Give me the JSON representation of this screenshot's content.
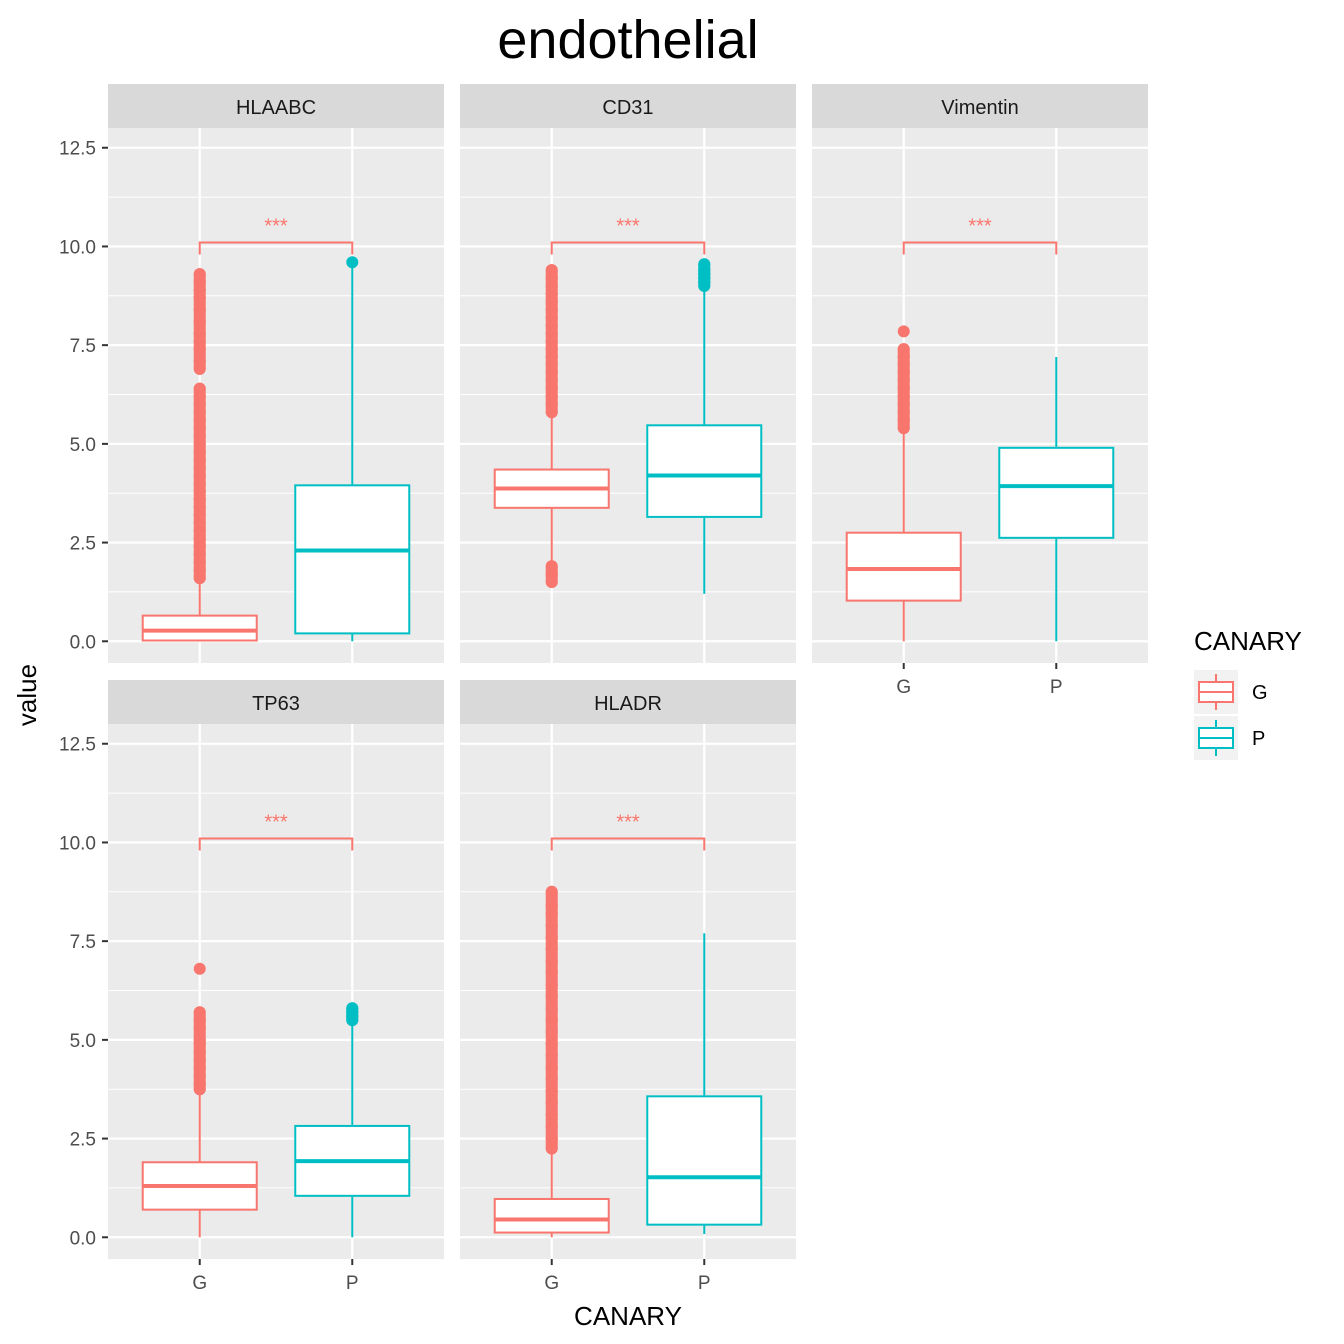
{
  "chart_data": {
    "type": "box",
    "title": "endothelial",
    "xlabel": "CANARY",
    "ylabel": "value",
    "ylim": [
      -0.55,
      13.0
    ],
    "yticks": [
      "0.0",
      "2.5",
      "5.0",
      "7.5",
      "10.0",
      "12.5"
    ],
    "ytick_values": [
      0,
      2.5,
      5,
      7.5,
      10,
      12.5
    ],
    "categories": [
      "G",
      "P"
    ],
    "grid": true,
    "legend": {
      "title": "CANARY",
      "placement": "right",
      "entries": [
        {
          "label": "G",
          "color": "#F8766D"
        },
        {
          "label": "P",
          "color": "#00BFC4"
        }
      ]
    },
    "colors": {
      "G": "#F8766D",
      "P": "#00BFC4"
    },
    "significance_y": 10.1,
    "panels": [
      {
        "name": "HLAABC",
        "significance": "***",
        "boxes": [
          {
            "group": "G",
            "q1": 0.02,
            "median": 0.27,
            "q3": 0.65,
            "whisker_low": 0.0,
            "whisker_high": 1.6,
            "outliers": [
              1.6,
              1.8,
              2.0,
              2.2,
              2.4,
              2.6,
              2.8,
              3.0,
              3.2,
              3.4,
              3.6,
              3.8,
              4.0,
              4.2,
              4.4,
              4.6,
              4.8,
              5.0,
              5.2,
              5.4,
              5.6,
              5.8,
              6.0,
              6.2,
              6.4,
              6.9,
              7.1,
              7.4,
              7.6,
              7.8,
              8.1,
              8.4,
              8.7,
              8.9,
              9.1,
              9.3
            ]
          },
          {
            "group": "P",
            "q1": 0.2,
            "median": 2.3,
            "q3": 3.95,
            "whisker_low": 0.0,
            "whisker_high": 9.6,
            "outliers": [
              9.6
            ]
          }
        ]
      },
      {
        "name": "CD31",
        "significance": "***",
        "boxes": [
          {
            "group": "G",
            "q1": 3.38,
            "median": 3.87,
            "q3": 4.35,
            "whisker_low": 1.95,
            "whisker_high": 5.8,
            "outliers": [
              1.5,
              1.7,
              1.9,
              5.8,
              6.0,
              6.2,
              6.4,
              6.6,
              6.8,
              7.0,
              7.2,
              7.4,
              7.6,
              7.8,
              8.0,
              8.2,
              8.4,
              8.6,
              8.8,
              9.0,
              9.2,
              9.4
            ]
          },
          {
            "group": "P",
            "q1": 3.15,
            "median": 4.2,
            "q3": 5.47,
            "whisker_low": 1.2,
            "whisker_high": 8.95,
            "outliers": [
              9.0,
              9.1,
              9.2,
              9.3,
              9.4,
              9.55
            ]
          }
        ]
      },
      {
        "name": "Vimentin",
        "significance": "***",
        "boxes": [
          {
            "group": "G",
            "q1": 1.03,
            "median": 1.83,
            "q3": 2.75,
            "whisker_low": 0.0,
            "whisker_high": 5.3,
            "outliers": [
              5.4,
              5.6,
              5.8,
              6.0,
              6.2,
              6.4,
              6.6,
              6.8,
              7.0,
              7.2,
              7.4,
              7.85
            ]
          },
          {
            "group": "P",
            "q1": 2.62,
            "median": 3.93,
            "q3": 4.9,
            "whisker_low": 0.0,
            "whisker_high": 7.2,
            "outliers": []
          }
        ]
      },
      {
        "name": "TP63",
        "significance": "***",
        "boxes": [
          {
            "group": "G",
            "q1": 0.7,
            "median": 1.3,
            "q3": 1.9,
            "whisker_low": 0.0,
            "whisker_high": 3.7,
            "outliers": [
              3.75,
              3.9,
              4.1,
              4.3,
              4.5,
              4.7,
              4.9,
              5.0,
              5.3,
              5.5,
              5.7,
              6.8
            ]
          },
          {
            "group": "P",
            "q1": 1.05,
            "median": 1.93,
            "q3": 2.82,
            "whisker_low": 0.0,
            "whisker_high": 5.45,
            "outliers": [
              5.5,
              5.6,
              5.7,
              5.8
            ]
          }
        ]
      },
      {
        "name": "HLADR",
        "significance": "***",
        "boxes": [
          {
            "group": "G",
            "q1": 0.12,
            "median": 0.45,
            "q3": 0.97,
            "whisker_low": 0.0,
            "whisker_high": 2.2,
            "outliers": [
              2.25,
              2.5,
              2.8,
              3.1,
              3.4,
              3.7,
              4.0,
              4.3,
              4.6,
              4.9,
              5.2,
              5.5,
              5.8,
              6.1,
              6.4,
              6.7,
              7.0,
              7.3,
              7.6,
              7.9,
              8.2,
              8.4,
              8.75
            ]
          },
          {
            "group": "P",
            "q1": 0.32,
            "median": 1.52,
            "q3": 3.57,
            "whisker_low": 0.08,
            "whisker_high": 7.7,
            "outliers": []
          }
        ]
      }
    ]
  }
}
